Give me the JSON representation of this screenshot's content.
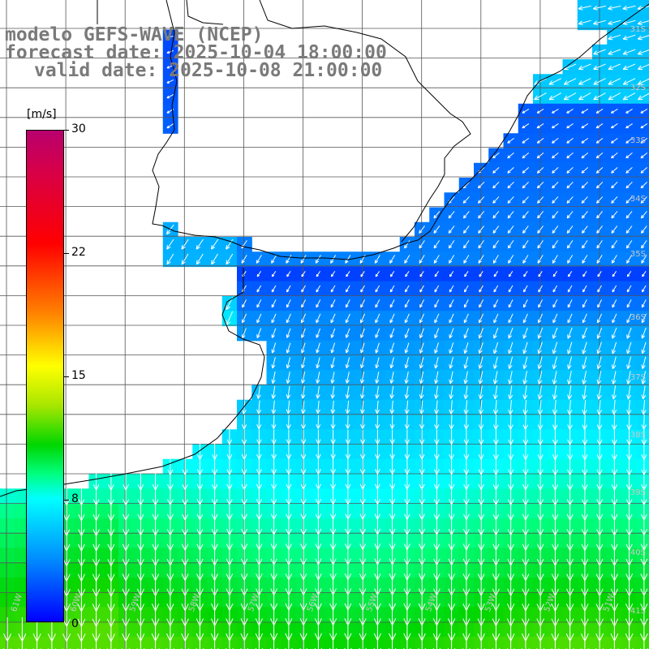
{
  "title": {
    "line1": "modelo GEFS-WAVE (NCEP)",
    "line2": "forecast date: 2025-10-04 18:00:00",
    "line3": "valid date: 2025-10-08 21:00:00"
  },
  "colorbar": {
    "unit": "[m/s]",
    "ticks": [
      "30",
      "22",
      "15",
      "8",
      "0"
    ],
    "tick_values": [
      30,
      22,
      15,
      8,
      0
    ]
  },
  "lat_labels": [
    "31S",
    "32S",
    "33S",
    "34S",
    "35S",
    "36S",
    "37S",
    "38S",
    "39S",
    "40S",
    "41S"
  ],
  "lon_labels": [
    "61W",
    "60W",
    "59W",
    "58W",
    "57W",
    "56W",
    "55W",
    "54W",
    "53W",
    "52W",
    "51W"
  ],
  "colors": {
    "land": "#ffffff",
    "coastline": "#000000",
    "grid": "#555555",
    "arrow": "#ffffff",
    "title": "#7a7a7a"
  },
  "field_description": {
    "variable": "wind speed",
    "units": "m/s",
    "min": 0,
    "max": 30,
    "direction": "arrows pointing toward the south-west"
  }
}
